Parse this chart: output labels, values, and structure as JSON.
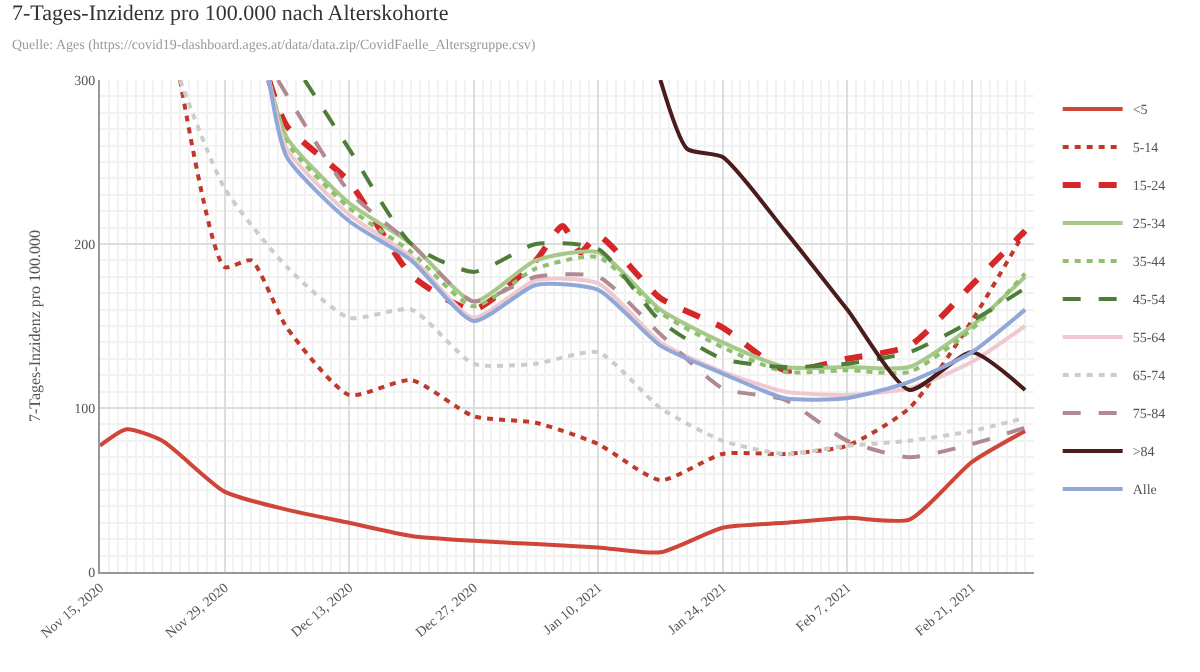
{
  "chart_data": {
    "type": "line",
    "title": "7-Tages-Inzidenz pro 100.000 nach Alterskohorte",
    "subtitle": "Quelle: Ages (https://covid19-dashboard.ages.at/data/data.zip/CovidFaelle_Altersgruppe.csv)",
    "ylabel": "7-Tages-Inzidenz pro 100.000",
    "xlim": [
      "2020-11-15",
      "2021-02-28"
    ],
    "xticks": [
      {
        "value": "2020-11-15",
        "label": "Nov 15, 2020"
      },
      {
        "value": "2020-11-29",
        "label": "Nov 29, 2020"
      },
      {
        "value": "2020-12-13",
        "label": "Dec 13, 2020"
      },
      {
        "value": "2020-12-27",
        "label": "Dec 27, 2020"
      },
      {
        "value": "2021-01-10",
        "label": "Jan 10, 2021"
      },
      {
        "value": "2021-01-24",
        "label": "Jan 24, 2021"
      },
      {
        "value": "2021-02-07",
        "label": "Feb 7, 2021"
      },
      {
        "value": "2021-02-21",
        "label": "Feb 21, 2021"
      }
    ],
    "ylim": [
      0,
      300
    ],
    "yticks": [
      0,
      100,
      200,
      300
    ],
    "grid": true,
    "legend": "right",
    "marker": "none",
    "series": [
      {
        "name": "<5",
        "color": "#d0453a",
        "line_style": "solid",
        "x": [
          "2020-11-15",
          "2020-11-18",
          "2020-11-22",
          "2020-11-29",
          "2020-12-06",
          "2020-12-13",
          "2020-12-20",
          "2020-12-27",
          "2021-01-03",
          "2021-01-10",
          "2021-01-17",
          "2021-01-24",
          "2021-01-31",
          "2021-02-07",
          "2021-02-14",
          "2021-02-21",
          "2021-02-27"
        ],
        "values": [
          77,
          87,
          80,
          49,
          38,
          30,
          22,
          19,
          17,
          15,
          12,
          27,
          30,
          33,
          32,
          67,
          86
        ]
      },
      {
        "name": "5-14",
        "color": "#c0392b",
        "line_style": "dotted",
        "x": [
          "2020-11-24",
          "2020-11-29",
          "2020-12-02",
          "2020-12-06",
          "2020-12-13",
          "2020-12-20",
          "2020-12-27",
          "2021-01-03",
          "2021-01-10",
          "2021-01-17",
          "2021-01-24",
          "2021-01-31",
          "2021-02-07",
          "2021-02-14",
          "2021-02-21",
          "2021-02-27"
        ],
        "values": [
          300,
          186,
          190,
          149,
          108,
          117,
          95,
          91,
          78,
          56,
          72,
          72,
          77,
          100,
          153,
          208
        ]
      },
      {
        "name": "15-24",
        "color": "#d62728",
        "line_style": "dashed",
        "x": [
          "2020-12-04",
          "2020-12-06",
          "2020-12-13",
          "2020-12-20",
          "2020-12-27",
          "2021-01-03",
          "2021-01-06",
          "2021-01-08",
          "2021-01-10",
          "2021-01-17",
          "2021-01-24",
          "2021-01-31",
          "2021-02-07",
          "2021-02-14",
          "2021-02-21",
          "2021-02-27"
        ],
        "values": [
          300,
          272,
          238,
          181,
          160,
          190,
          211,
          195,
          205,
          167,
          149,
          123,
          130,
          138,
          175,
          208
        ]
      },
      {
        "name": "25-34",
        "color": "#a6c98a",
        "line_style": "solid",
        "x": [
          "2020-12-04",
          "2020-12-06",
          "2020-12-13",
          "2020-12-20",
          "2020-12-27",
          "2021-01-03",
          "2021-01-10",
          "2021-01-17",
          "2021-01-24",
          "2021-01-31",
          "2021-02-07",
          "2021-02-14",
          "2021-02-21",
          "2021-02-27"
        ],
        "values": [
          300,
          265,
          225,
          200,
          165,
          190,
          195,
          160,
          140,
          125,
          125,
          125,
          150,
          180
        ]
      },
      {
        "name": "35-44",
        "color": "#8fbf6f",
        "line_style": "dotted",
        "x": [
          "2020-12-04",
          "2020-12-06",
          "2020-12-13",
          "2020-12-20",
          "2020-12-27",
          "2021-01-03",
          "2021-01-10",
          "2021-01-17",
          "2021-01-24",
          "2021-01-31",
          "2021-02-07",
          "2021-02-14",
          "2021-02-21",
          "2021-02-27"
        ],
        "values": [
          300,
          262,
          222,
          195,
          162,
          185,
          192,
          158,
          137,
          122,
          123,
          122,
          148,
          182
        ]
      },
      {
        "name": "45-54",
        "color": "#4e7d3a",
        "line_style": "dashed",
        "x": [
          "2020-12-08",
          "2020-12-13",
          "2020-12-20",
          "2020-12-27",
          "2021-01-03",
          "2021-01-10",
          "2021-01-17",
          "2021-01-24",
          "2021-01-31",
          "2021-02-07",
          "2021-02-14",
          "2021-02-21",
          "2021-02-27"
        ],
        "values": [
          300,
          258,
          200,
          183,
          200,
          197,
          153,
          130,
          125,
          127,
          134,
          153,
          173
        ]
      },
      {
        "name": "55-64",
        "color": "#f0c8d0",
        "line_style": "solid",
        "x": [
          "2020-12-04",
          "2020-12-06",
          "2020-12-13",
          "2020-12-20",
          "2020-12-27",
          "2021-01-03",
          "2021-01-10",
          "2021-01-17",
          "2021-01-24",
          "2021-01-31",
          "2021-02-07",
          "2021-02-14",
          "2021-02-21",
          "2021-02-27"
        ],
        "values": [
          300,
          258,
          218,
          192,
          155,
          178,
          176,
          140,
          122,
          110,
          108,
          112,
          128,
          150
        ]
      },
      {
        "name": "65-74",
        "color": "#cccccc",
        "line_style": "dotted",
        "x": [
          "2020-11-24",
          "2020-11-29",
          "2020-12-06",
          "2020-12-13",
          "2020-12-20",
          "2020-12-27",
          "2021-01-03",
          "2021-01-10",
          "2021-01-17",
          "2021-01-24",
          "2021-01-31",
          "2021-02-07",
          "2021-02-14",
          "2021-02-21",
          "2021-02-27"
        ],
        "values": [
          300,
          234,
          186,
          155,
          160,
          127,
          127,
          134,
          100,
          80,
          72,
          77,
          80,
          86,
          94
        ]
      },
      {
        "name": "75-84",
        "color": "#b08a90",
        "line_style": "dashed",
        "x": [
          "2020-12-05",
          "2020-12-13",
          "2020-12-20",
          "2020-12-27",
          "2021-01-03",
          "2021-01-10",
          "2021-01-17",
          "2021-01-24",
          "2021-01-31",
          "2021-02-07",
          "2021-02-14",
          "2021-02-21",
          "2021-02-27"
        ],
        "values": [
          300,
          232,
          200,
          165,
          180,
          180,
          145,
          112,
          105,
          80,
          70,
          78,
          88
        ]
      },
      {
        "name": ">84",
        "color": "#4a1c1c",
        "line_style": "solid",
        "x": [
          "2021-01-17",
          "2021-01-20",
          "2021-01-24",
          "2021-01-31",
          "2021-02-07",
          "2021-02-14",
          "2021-02-21",
          "2021-02-27"
        ],
        "values": [
          300,
          258,
          253,
          208,
          160,
          111,
          134,
          111
        ]
      },
      {
        "name": "Alle",
        "color": "#8fa8d8",
        "line_style": "solid",
        "x": [
          "2020-12-04",
          "2020-12-06",
          "2020-12-13",
          "2020-12-20",
          "2020-12-27",
          "2021-01-03",
          "2021-01-10",
          "2021-01-17",
          "2021-01-24",
          "2021-01-31",
          "2021-02-07",
          "2021-02-14",
          "2021-02-21",
          "2021-02-27"
        ],
        "values": [
          300,
          253,
          214,
          190,
          153,
          175,
          172,
          138,
          121,
          106,
          106,
          116,
          134,
          160
        ]
      }
    ]
  }
}
